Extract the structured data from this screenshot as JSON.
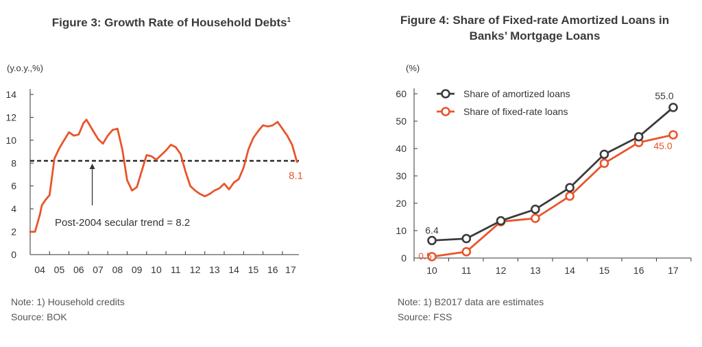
{
  "figures": {
    "left": {
      "title": "Figure 3: Growth Rate of Household Debts",
      "title_sup": "1",
      "note": "Note: 1) Household credits",
      "source": "Source: BOK"
    },
    "right": {
      "title_line1": "Figure 4: Share of Fixed-rate Amortized Loans in",
      "title_line2": "Banks’ Mortgage Loans",
      "note": "Note: 1) B2017 data are estimates",
      "source": "Source: FSS"
    }
  },
  "chart_data": [
    {
      "type": "line",
      "title": "Figure 3: Growth Rate of Household Debts",
      "ylabel": "(y.o.y.,%)",
      "ylim": [
        0,
        14
      ],
      "yticks": [
        0,
        2,
        4,
        6,
        8,
        10,
        12,
        14
      ],
      "xlim": [
        2004,
        2017.85
      ],
      "categories": [
        "04",
        "05",
        "06",
        "07",
        "08",
        "09",
        "10",
        "11",
        "12",
        "13",
        "14",
        "15",
        "16",
        "17"
      ],
      "series": [
        {
          "color": "#e8542a",
          "x": [
            2004.0,
            2004.25,
            2004.5,
            2004.6,
            2004.8,
            2005.0,
            2005.25,
            2005.5,
            2005.75,
            2006.0,
            2006.25,
            2006.5,
            2006.75,
            2006.9,
            2007.25,
            2007.5,
            2007.75,
            2008.0,
            2008.25,
            2008.5,
            2008.75,
            2009.0,
            2009.25,
            2009.5,
            2009.75,
            2010.0,
            2010.25,
            2010.5,
            2010.75,
            2011.0,
            2011.25,
            2011.5,
            2011.75,
            2012.0,
            2012.25,
            2012.5,
            2012.75,
            2013.0,
            2013.25,
            2013.5,
            2013.75,
            2014.0,
            2014.25,
            2014.5,
            2014.75,
            2015.0,
            2015.25,
            2015.5,
            2015.75,
            2016.0,
            2016.25,
            2016.5,
            2016.75,
            2017.0,
            2017.25,
            2017.5,
            2017.75
          ],
          "values": [
            2.0,
            2.0,
            3.5,
            4.3,
            4.8,
            5.2,
            8.4,
            9.3,
            10.0,
            10.7,
            10.4,
            10.5,
            11.5,
            11.8,
            10.8,
            10.1,
            9.7,
            10.4,
            10.9,
            11.0,
            9.2,
            6.5,
            5.6,
            5.9,
            7.3,
            8.7,
            8.6,
            8.3,
            8.7,
            9.1,
            9.6,
            9.4,
            8.8,
            7.3,
            6.0,
            5.6,
            5.3,
            5.1,
            5.3,
            5.6,
            5.8,
            6.2,
            5.7,
            6.3,
            6.6,
            7.6,
            9.2,
            10.2,
            10.8,
            11.3,
            11.2,
            11.3,
            11.6,
            11.0,
            10.4,
            9.6,
            8.1
          ]
        }
      ],
      "reference_line": {
        "value": 8.2,
        "label": "Post-2004 secular trend = 8.2",
        "style": "dashed",
        "color": "#2a2a2a",
        "arrow_at_x": 2007.2
      },
      "end_label": "8.1",
      "grid": false
    },
    {
      "type": "line",
      "title": "Figure 4: Share of Fixed-rate Amortized Loans in Banks’ Mortgage Loans",
      "ylabel": "(%)",
      "ylim": [
        0,
        60
      ],
      "yticks": [
        0,
        10,
        20,
        30,
        40,
        50,
        60
      ],
      "categories": [
        "10",
        "11",
        "12",
        "13",
        "14",
        "15",
        "16",
        "17"
      ],
      "series": [
        {
          "name": "Share of amortized loans",
          "color": "#3a3a3a",
          "values": [
            6.4,
            7.1,
            13.6,
            17.8,
            25.7,
            37.9,
            44.3,
            55.0
          ]
        },
        {
          "name": "Share of fixed-rate loans",
          "color": "#e8542a",
          "values": [
            0.5,
            2.3,
            13.3,
            14.5,
            22.6,
            34.6,
            42.2,
            45.0
          ]
        }
      ],
      "data_labels": [
        {
          "series": 0,
          "index": 0,
          "text": "6.4"
        },
        {
          "series": 1,
          "index": 0,
          "text": "0.5"
        },
        {
          "series": 0,
          "index": 7,
          "text": "55.0"
        },
        {
          "series": 1,
          "index": 7,
          "text": "45.0"
        }
      ],
      "legend": "top-left",
      "grid": false
    }
  ]
}
